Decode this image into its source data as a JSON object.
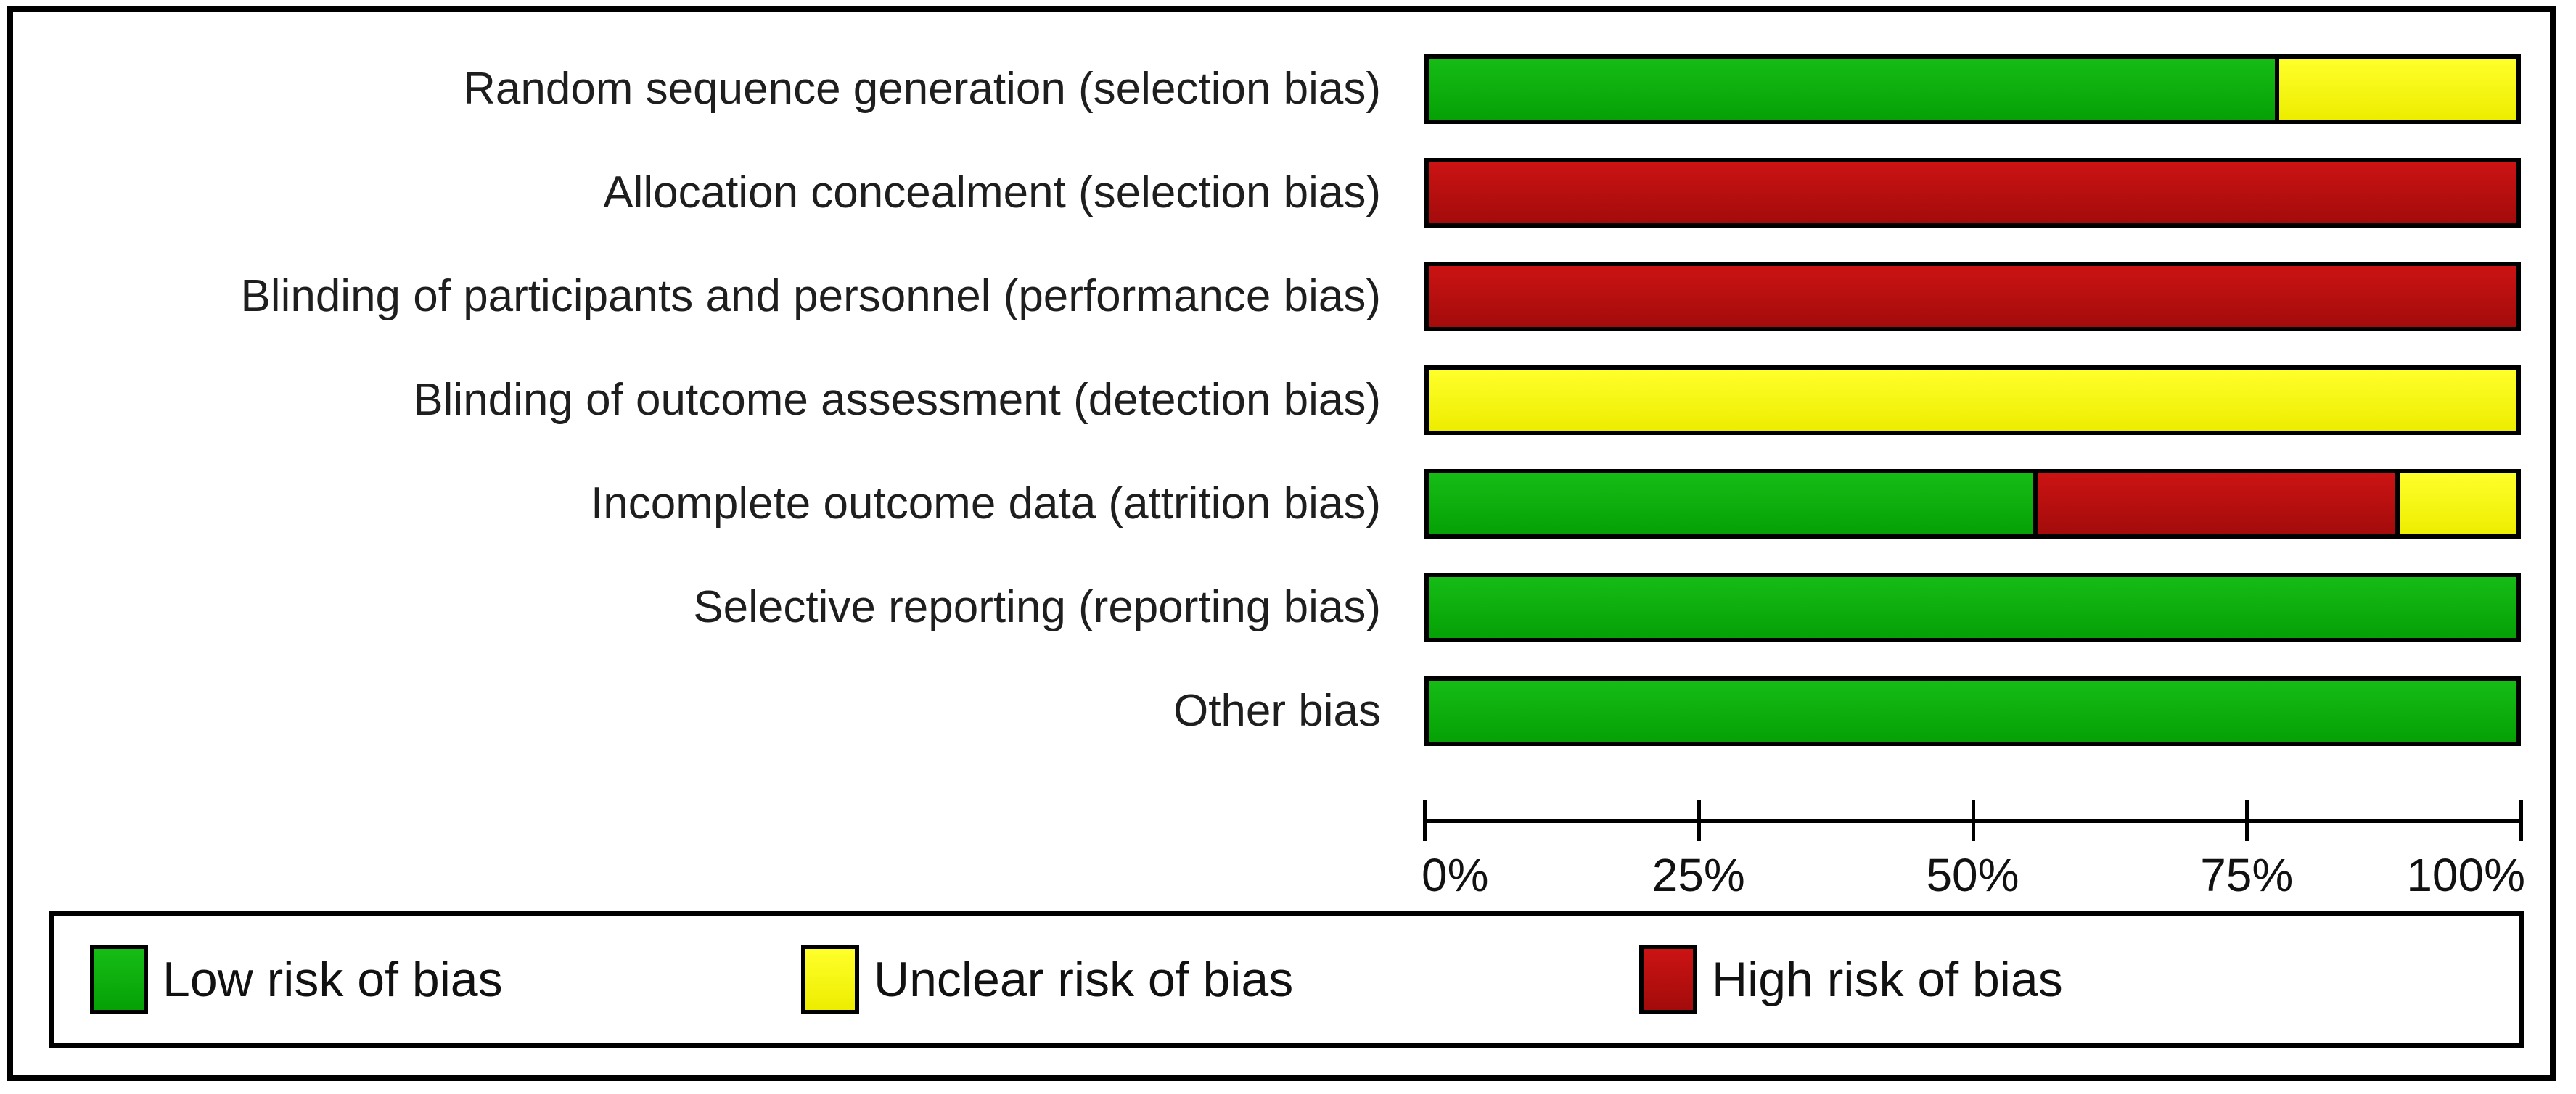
{
  "chart_data": {
    "type": "bar",
    "orientation": "horizontal-stacked",
    "title": "",
    "xlabel": "",
    "ylabel": "",
    "xlim": [
      0,
      100
    ],
    "x_ticks": [
      "0%",
      "25%",
      "50%",
      "75%",
      "100%"
    ],
    "grid": false,
    "legend_position": "bottom",
    "categories": [
      "Random sequence generation (selection bias)",
      "Allocation concealment (selection bias)",
      "Blinding of participants and personnel (performance bias)",
      "Blinding of outcome assessment (detection bias)",
      "Incomplete outcome data (attrition bias)",
      "Selective reporting (reporting bias)",
      "Other bias"
    ],
    "series": [
      {
        "name": "Low risk of bias",
        "values": [
          77.8,
          0,
          0,
          0,
          55.6,
          100,
          100
        ]
      },
      {
        "name": "Unclear risk of bias",
        "values": [
          22.2,
          0,
          0,
          100,
          11.1,
          0,
          0
        ]
      },
      {
        "name": "High risk of bias",
        "values": [
          0,
          100,
          100,
          0,
          33.3,
          0,
          0
        ]
      }
    ]
  },
  "rows": [
    {
      "label": "Random sequence generation (selection bias)",
      "segments": [
        {
          "risk": "low",
          "pct": 77.78
        },
        {
          "risk": "unclear",
          "pct": 22.22
        }
      ]
    },
    {
      "label": "Allocation concealment (selection bias)",
      "segments": [
        {
          "risk": "high",
          "pct": 100
        }
      ]
    },
    {
      "label": "Blinding of participants and personnel (performance bias)",
      "segments": [
        {
          "risk": "high",
          "pct": 100
        }
      ]
    },
    {
      "label": "Blinding of outcome assessment (detection bias)",
      "segments": [
        {
          "risk": "unclear",
          "pct": 100
        }
      ]
    },
    {
      "label": "Incomplete outcome data (attrition bias)",
      "segments": [
        {
          "risk": "low",
          "pct": 55.56
        },
        {
          "risk": "high",
          "pct": 33.33
        },
        {
          "risk": "unclear",
          "pct": 11.11
        }
      ]
    },
    {
      "label": "Selective reporting (reporting bias)",
      "segments": [
        {
          "risk": "low",
          "pct": 100
        }
      ]
    },
    {
      "label": "Other bias",
      "segments": [
        {
          "risk": "low",
          "pct": 100
        }
      ]
    }
  ],
  "axis": {
    "ticks": [
      "0%",
      "25%",
      "50%",
      "75%",
      "100%"
    ]
  },
  "legend": [
    {
      "risk": "low",
      "label": "Low risk of bias"
    },
    {
      "risk": "unclear",
      "label": "Unclear risk of bias"
    },
    {
      "risk": "high",
      "label": "High risk of bias"
    }
  ],
  "colors": {
    "low": {
      "top": "#16bc16",
      "bottom": "#05a105"
    },
    "unclear": {
      "top": "#ffff2b",
      "bottom": "#eded00"
    },
    "high": {
      "top": "#cc1313",
      "bottom": "#a30b0b"
    },
    "bar_border": "#000000",
    "frame_border": "#000000",
    "text": "#1e1e1e"
  }
}
